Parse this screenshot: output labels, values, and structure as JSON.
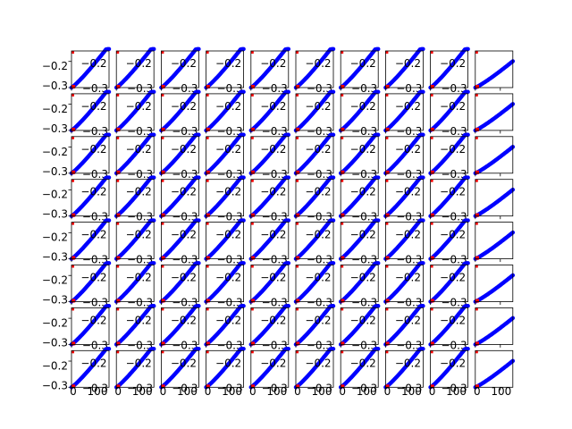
{
  "colors": {
    "series_main": "#0000ff",
    "series_marker": "#ff0000",
    "axes": "#000000",
    "background": "#ffffff"
  },
  "chart_data": {
    "type": "scatter",
    "layout": "grid of small multiples",
    "rows": 8,
    "cols": 10,
    "title": "",
    "xlabel": "",
    "ylabel": "",
    "xlim": [
      0,
      150
    ],
    "ylim": [
      -0.3,
      -0.16
    ],
    "xticks": [
      0,
      100
    ],
    "xtick_labels": [
      "0",
      "100"
    ],
    "yticks": [
      -0.3,
      -0.2
    ],
    "ytick_labels": [
      "−0.3",
      "−0.2"
    ],
    "overlay_labels": [
      "−0.2",
      "−0.3"
    ],
    "grid": false,
    "series": [
      {
        "role": "main",
        "x_start": 0,
        "x_end": 150,
        "y_start": -0.3,
        "y_end": -0.16
      },
      {
        "role": "marker",
        "x_start": 0,
        "x_end": 15,
        "y_start": -0.3,
        "y_end": -0.3
      }
    ]
  }
}
